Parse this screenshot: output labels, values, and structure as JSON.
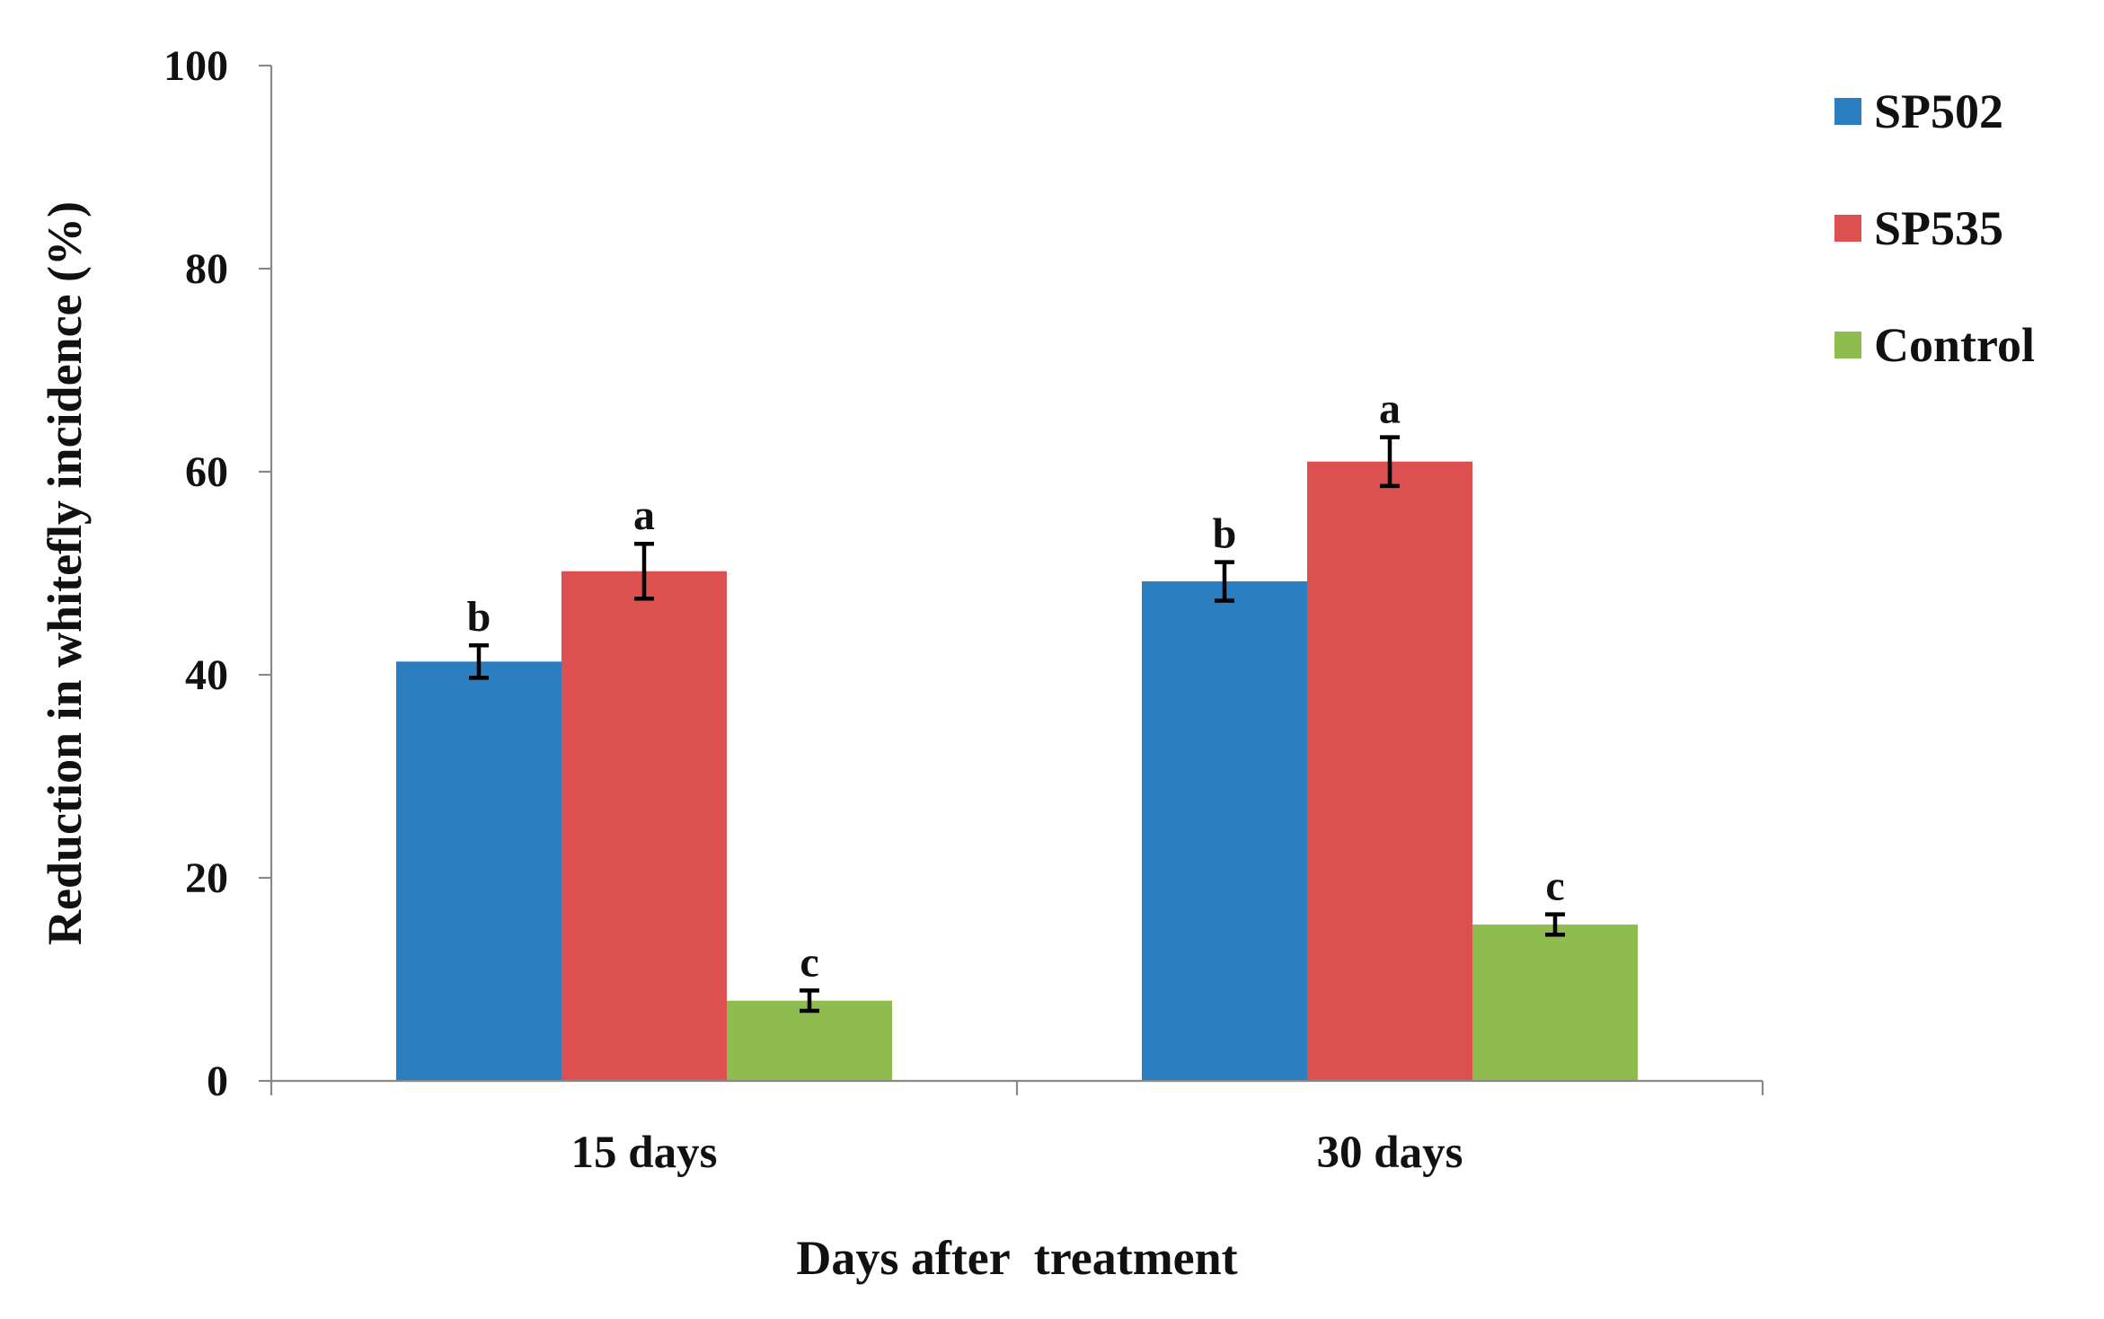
{
  "chart_data": {
    "type": "bar",
    "title": "",
    "xlabel": "Days after  treatment",
    "ylabel": "Reduction in whitefly incidence (%)",
    "ylim": [
      0,
      100
    ],
    "yticks": [
      0,
      20,
      40,
      60,
      80,
      100
    ],
    "grid": false,
    "legend_position": "top-right",
    "categories": [
      "15 days",
      "30 days"
    ],
    "series": [
      {
        "name": "SP502",
        "color": "#2A7EC0",
        "values": [
          41.3,
          49.2
        ],
        "errors": [
          1.6,
          1.9
        ],
        "significance": [
          "b",
          "b"
        ]
      },
      {
        "name": "SP535",
        "color": "#DC5150",
        "values": [
          50.2,
          61.0
        ],
        "errors": [
          2.7,
          2.4
        ],
        "significance": [
          "a",
          "a"
        ]
      },
      {
        "name": "Control",
        "color": "#8EBC4F",
        "values": [
          7.9,
          15.4
        ],
        "errors": [
          1.0,
          1.0
        ],
        "significance": [
          "c",
          "c"
        ]
      }
    ]
  }
}
